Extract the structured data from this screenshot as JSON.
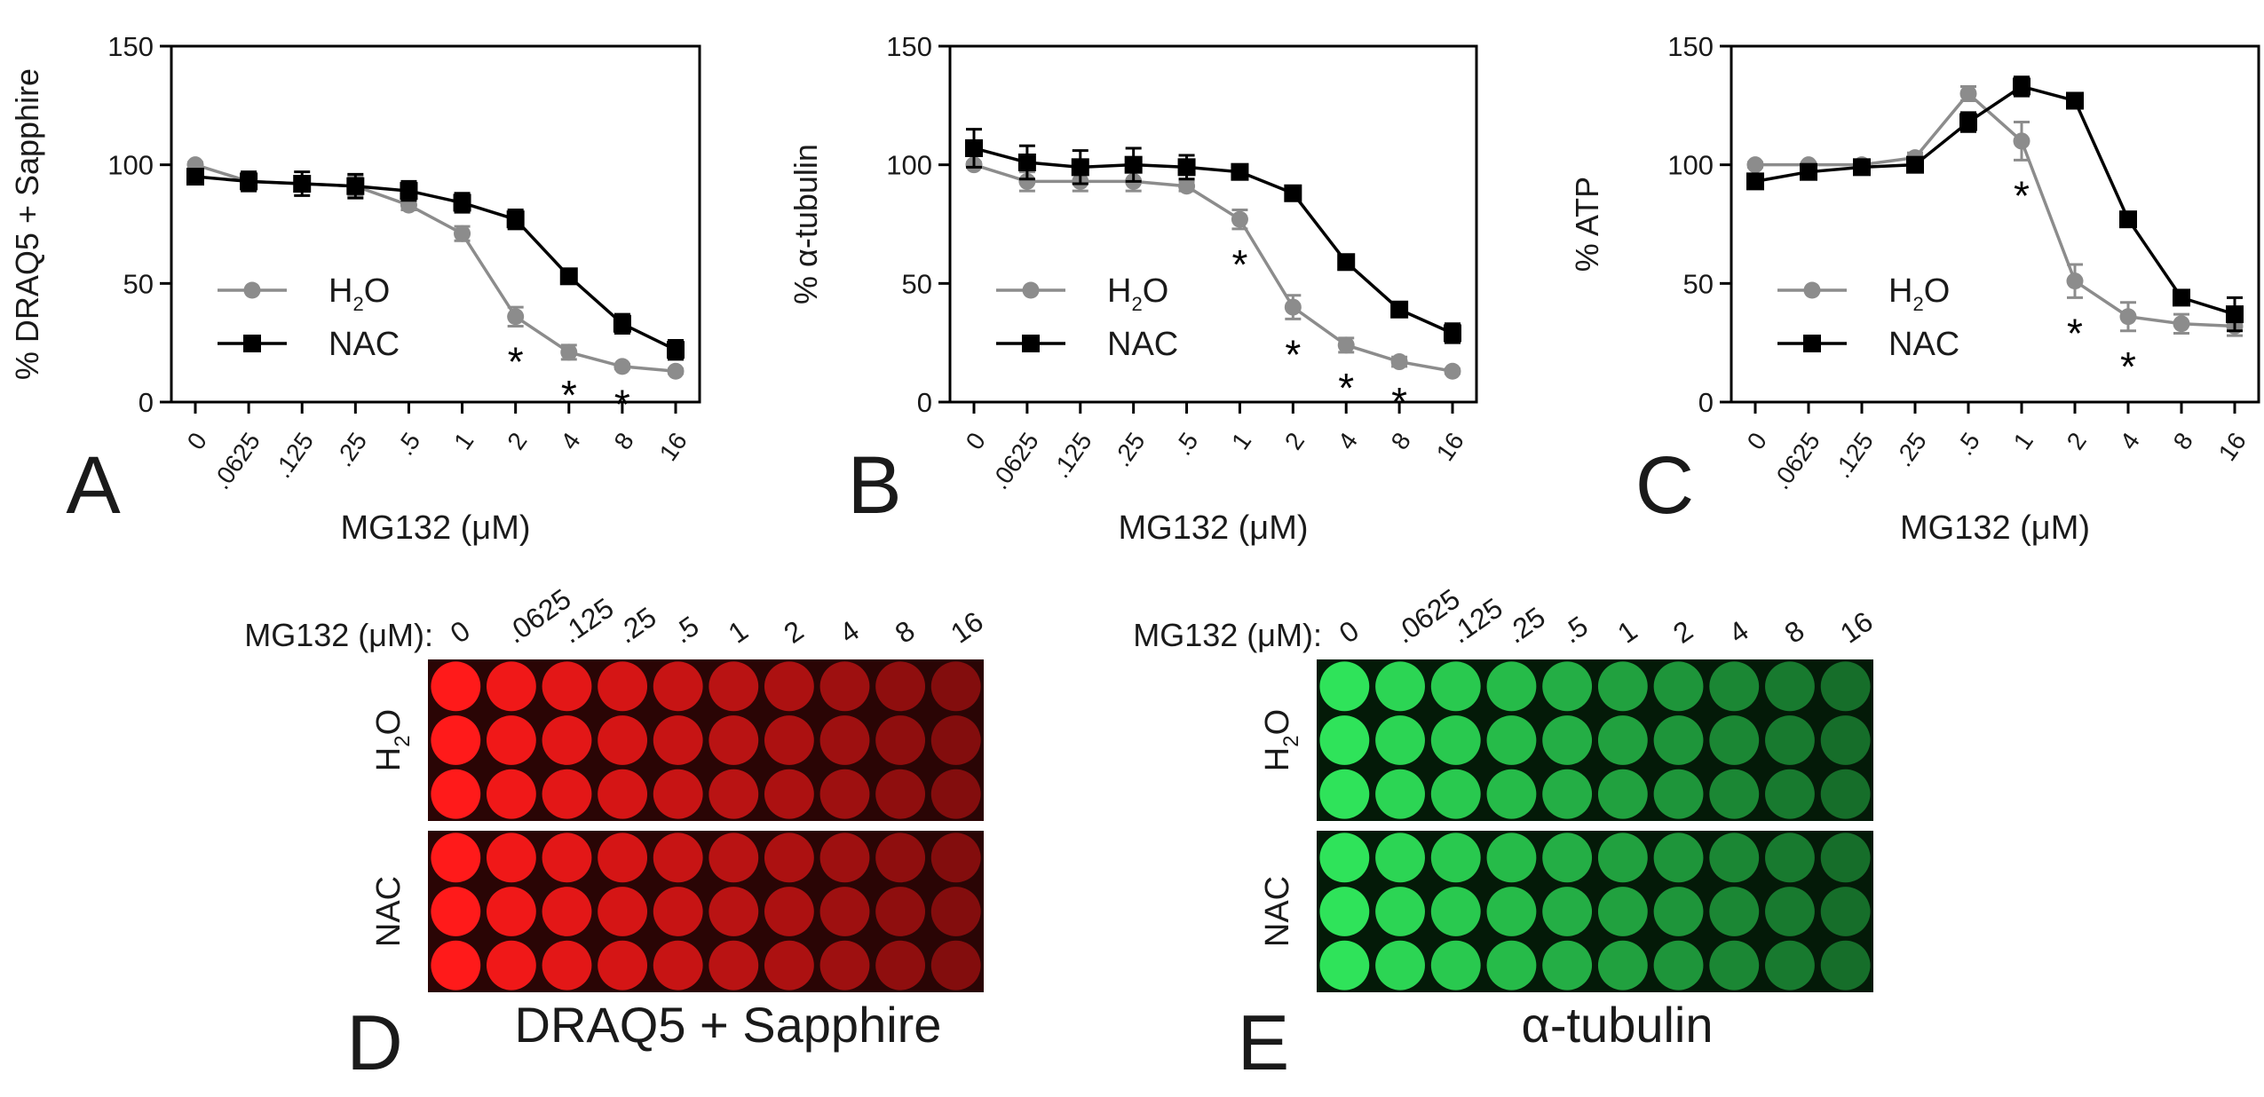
{
  "figure": {
    "plate_row_labels": [
      "H2O",
      "NAC"
    ],
    "plates": [
      {
        "letter": "D",
        "title": "DRAQ5 + Sapphire",
        "xlabel": "MG132 (μM):",
        "color": "#ff1a1a",
        "bg": "#2a0505"
      },
      {
        "letter": "E",
        "title": "α-tubulin",
        "xlabel": "MG132 (μM):",
        "color": "#2fe35a",
        "bg": "#041a08"
      }
    ]
  },
  "chart_data": [
    {
      "panel": "A",
      "type": "line",
      "title": "",
      "xlabel": "MG132 (μM)",
      "ylabel": "% DRAQ5 + Sapphire",
      "categories": [
        "0",
        ".0625",
        ".125",
        ".25",
        ".5",
        "1",
        "2",
        "4",
        "8",
        "16"
      ],
      "ylim": [
        0,
        150
      ],
      "yticks": [
        0,
        50,
        100,
        150
      ],
      "legend_position": "lower-left",
      "series": [
        {
          "name": "H2O",
          "values": [
            100,
            93,
            92,
            91,
            83,
            71,
            36,
            21,
            15,
            13
          ],
          "errors": [
            1,
            3,
            3,
            4,
            2,
            3,
            4,
            3,
            1,
            1
          ],
          "color": "#8c8c8c",
          "marker": "circle"
        },
        {
          "name": "NAC",
          "values": [
            95,
            93,
            92,
            91,
            89,
            84,
            77,
            53,
            33,
            22
          ],
          "errors": [
            3,
            4,
            5,
            5,
            4,
            4,
            4,
            3,
            4,
            4
          ],
          "color": "#000000",
          "marker": "square"
        }
      ],
      "significance": [
        "",
        "",
        "",
        "",
        "",
        "",
        "*",
        "*",
        "*",
        ""
      ]
    },
    {
      "panel": "B",
      "type": "line",
      "title": "",
      "xlabel": "MG132 (μM)",
      "ylabel": "% α-tubulin",
      "categories": [
        "0",
        ".0625",
        ".125",
        ".25",
        ".5",
        "1",
        "2",
        "4",
        "8",
        "16"
      ],
      "ylim": [
        0,
        150
      ],
      "yticks": [
        0,
        50,
        100,
        150
      ],
      "legend_position": "lower-left",
      "series": [
        {
          "name": "H2O",
          "values": [
            100,
            93,
            93,
            93,
            91,
            77,
            40,
            24,
            17,
            13
          ],
          "errors": [
            1,
            4,
            4,
            4,
            2,
            4,
            5,
            3,
            2,
            1
          ],
          "color": "#8c8c8c",
          "marker": "circle"
        },
        {
          "name": "NAC",
          "values": [
            107,
            101,
            99,
            100,
            99,
            97,
            88,
            59,
            39,
            29
          ],
          "errors": [
            8,
            7,
            7,
            7,
            5,
            2,
            2,
            2,
            3,
            4
          ],
          "color": "#000000",
          "marker": "square"
        }
      ],
      "significance": [
        "",
        "",
        "",
        "",
        "",
        "*",
        "*",
        "*",
        "*",
        ""
      ]
    },
    {
      "panel": "C",
      "type": "line",
      "title": "",
      "xlabel": "MG132 (μM)",
      "ylabel": "% ATP",
      "categories": [
        "0",
        ".0625",
        ".125",
        ".25",
        ".5",
        "1",
        "2",
        "4",
        "8",
        "16"
      ],
      "ylim": [
        0,
        150
      ],
      "yticks": [
        0,
        50,
        100,
        150
      ],
      "legend_position": "lower-left",
      "series": [
        {
          "name": "H2O",
          "values": [
            100,
            100,
            100,
            103,
            130,
            110,
            51,
            36,
            33,
            32
          ],
          "errors": [
            1,
            1,
            1,
            2,
            3,
            8,
            7,
            6,
            4,
            4
          ],
          "color": "#8c8c8c",
          "marker": "circle"
        },
        {
          "name": "NAC",
          "values": [
            93,
            97,
            99,
            100,
            118,
            133,
            127,
            77,
            44,
            37
          ],
          "errors": [
            3,
            2,
            2,
            2,
            4,
            4,
            2,
            2,
            2,
            7
          ],
          "color": "#000000",
          "marker": "square"
        }
      ],
      "significance": [
        "",
        "",
        "",
        "",
        "",
        "*",
        "*",
        "*",
        "",
        ""
      ]
    }
  ]
}
